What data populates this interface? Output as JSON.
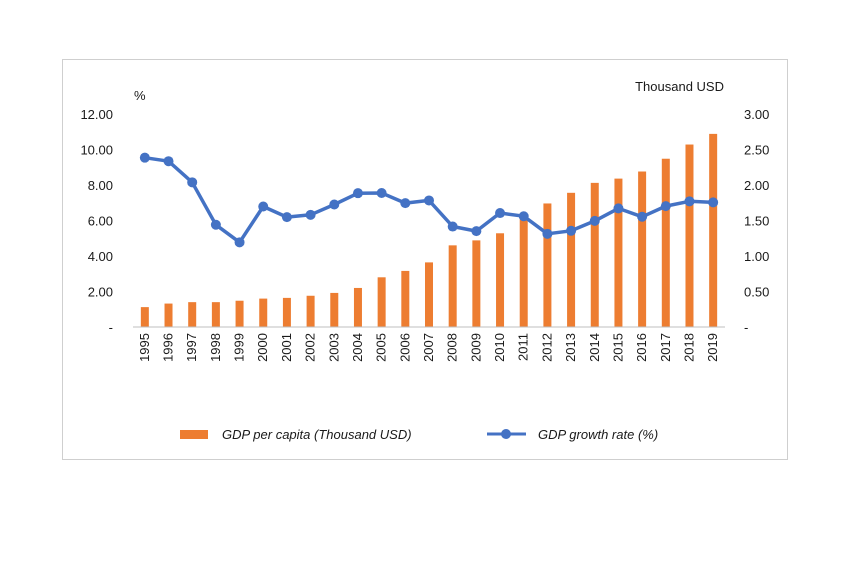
{
  "chart_data": {
    "type": "bar+line",
    "categories": [
      "1995",
      "1996",
      "1997",
      "1998",
      "1999",
      "2000",
      "2001",
      "2002",
      "2003",
      "2004",
      "2005",
      "2006",
      "2007",
      "2008",
      "2009",
      "2010",
      "2011",
      "2012",
      "2013",
      "2014",
      "2015",
      "2016",
      "2017",
      "2018",
      "2019"
    ],
    "series": [
      {
        "name": "GDP per capita (Thousand USD)",
        "type": "bar",
        "axis": "right",
        "color": "#ED7D31",
        "values": [
          0.28,
          0.33,
          0.35,
          0.35,
          0.37,
          0.4,
          0.41,
          0.44,
          0.48,
          0.55,
          0.7,
          0.79,
          0.91,
          1.15,
          1.22,
          1.32,
          1.52,
          1.74,
          1.89,
          2.03,
          2.09,
          2.19,
          2.37,
          2.57,
          2.72
        ]
      },
      {
        "name": "GDP growth rate (%)",
        "type": "line",
        "axis": "left",
        "color": "#4472C4",
        "values": [
          9.54,
          9.34,
          8.15,
          5.76,
          4.77,
          6.79,
          6.19,
          6.32,
          6.9,
          7.54,
          7.55,
          6.98,
          7.13,
          5.66,
          5.4,
          6.42,
          6.24,
          5.25,
          5.42,
          5.98,
          6.68,
          6.21,
          6.81,
          7.08,
          7.02
        ]
      }
    ],
    "y_left": {
      "unit_label": "%",
      "ylim": [
        0,
        12
      ],
      "ticks": [
        {
          "value": 0,
          "label": "-"
        },
        {
          "value": 2,
          "label": "2.00"
        },
        {
          "value": 4,
          "label": "4.00"
        },
        {
          "value": 6,
          "label": "6.00"
        },
        {
          "value": 8,
          "label": "8.00"
        },
        {
          "value": 10,
          "label": "10.00"
        },
        {
          "value": 12,
          "label": "12.00"
        }
      ]
    },
    "y_right": {
      "unit_label": "Thousand USD",
      "ylim": [
        0,
        3
      ],
      "ticks": [
        {
          "value": 0,
          "label": "-"
        },
        {
          "value": 0.5,
          "label": "0.50"
        },
        {
          "value": 1,
          "label": "1.00"
        },
        {
          "value": 1.5,
          "label": "1.50"
        },
        {
          "value": 2,
          "label": "2.00"
        },
        {
          "value": 2.5,
          "label": "2.50"
        },
        {
          "value": 3,
          "label": "3.00"
        }
      ]
    },
    "grid": false,
    "legend_position": "bottom"
  }
}
